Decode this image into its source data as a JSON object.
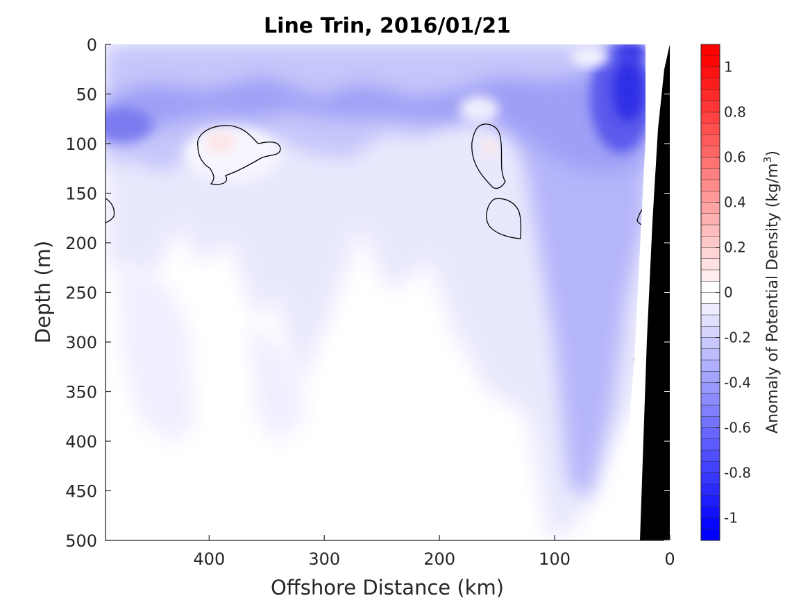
{
  "chart_data": {
    "type": "heatmap",
    "title": "Line Trin, 2016/01/21",
    "xlabel": "Offshore Distance (km)",
    "ylabel": "Depth (m)",
    "xlim": [
      490,
      0
    ],
    "ylim": [
      0,
      500
    ],
    "x_reversed": true,
    "y_reversed": true,
    "x_ticks": [
      "400",
      "300",
      "200",
      "100",
      "0"
    ],
    "x_tick_values": [
      400,
      300,
      200,
      100,
      0
    ],
    "y_ticks": [
      "0",
      "50",
      "100",
      "150",
      "200",
      "250",
      "300",
      "350",
      "400",
      "450",
      "500"
    ],
    "y_tick_values": [
      0,
      50,
      100,
      150,
      200,
      250,
      300,
      350,
      400,
      450,
      500
    ],
    "colorbar": {
      "label": "Anomaly of Potential Density (kg/m³)",
      "label_main": "Anomaly of Potential Density (kg/m",
      "label_sup": "3",
      "label_end": ")",
      "range": [
        -1.1,
        1.1
      ],
      "step": 0.05,
      "ticks": [
        "1",
        "0.8",
        "0.6",
        "0.4",
        "0.2",
        "0",
        "-0.2",
        "-0.4",
        "-0.6",
        "-0.8",
        "-1"
      ],
      "tick_values": [
        1,
        0.8,
        0.6,
        0.4,
        0.2,
        0,
        -0.2,
        -0.4,
        -0.6,
        -0.8,
        -1
      ],
      "colormap": "blue-white-red"
    },
    "bathymetry_color": "#000000",
    "colors": {
      "negative": "#0000ff",
      "positive": "#ff0000",
      "neutral": "#ffffff"
    },
    "features": [
      {
        "type": "negative_layer",
        "x_range": [
          490,
          20
        ],
        "depth_range": [
          0,
          130
        ],
        "value": -0.35
      },
      {
        "type": "negative_core",
        "x": 35,
        "depth": 50,
        "value": -0.85
      },
      {
        "type": "negative_core",
        "x": 470,
        "depth": 80,
        "value": -0.6
      },
      {
        "type": "positive_eddy",
        "x": 390,
        "depth": 100,
        "value": 0.1
      },
      {
        "type": "positive_eddy",
        "x": 160,
        "depth": 100,
        "value": 0.08
      },
      {
        "type": "weak_negative_deep",
        "x_range": [
          120,
          20
        ],
        "depth_range": [
          130,
          500
        ],
        "value": -0.2
      }
    ]
  }
}
